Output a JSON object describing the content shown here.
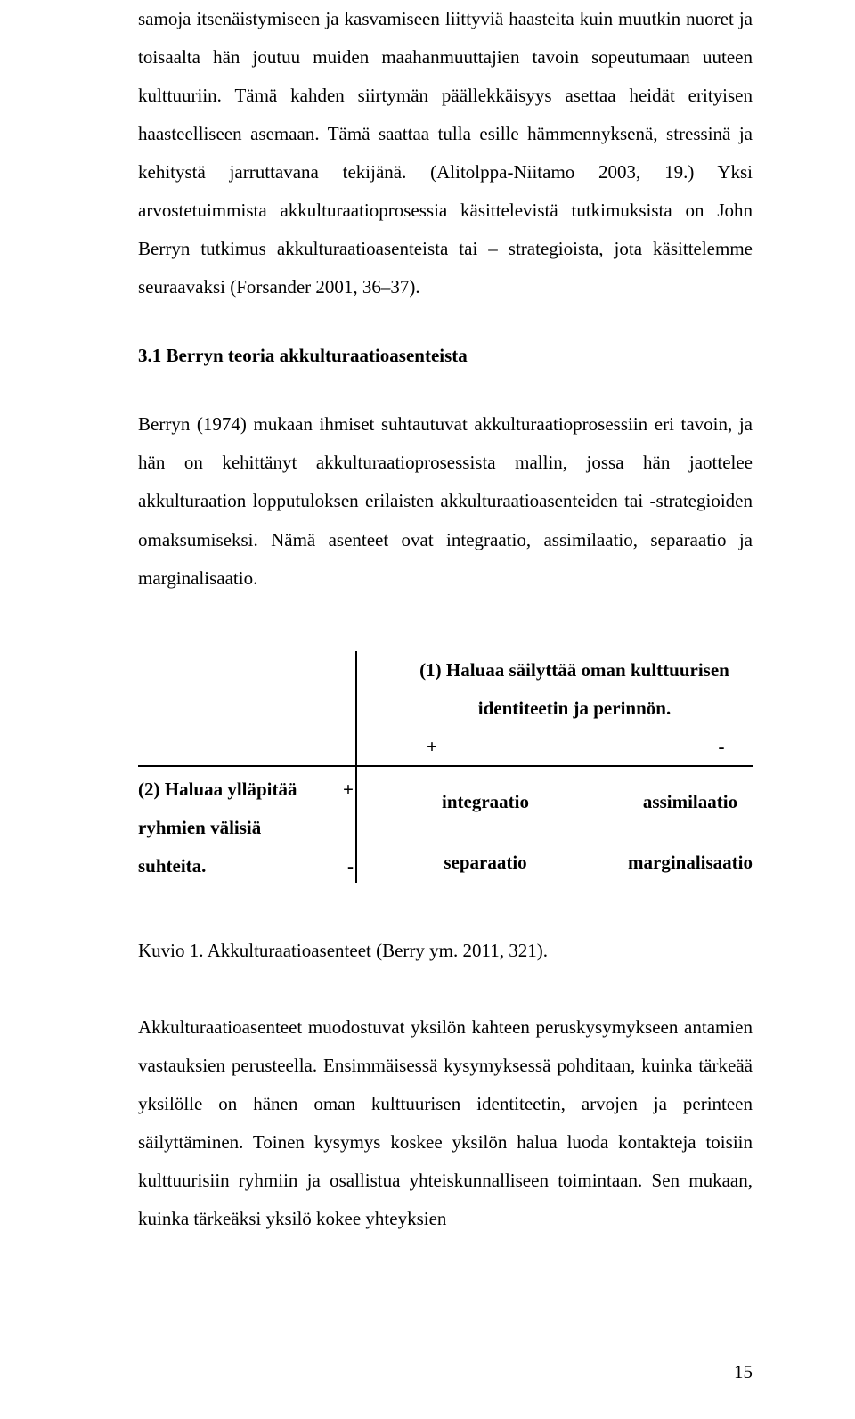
{
  "para1": "samoja itsenäistymiseen ja kasvamiseen liittyviä haasteita kuin muutkin nuoret ja toisaalta hän joutuu muiden maahanmuuttajien tavoin sopeutumaan uuteen kulttuuriin. Tämä kahden siirtymän päällekkäisyys asettaa heidät erityisen haasteelliseen asemaan. Tämä saattaa tulla esille hämmennyksenä, stressinä ja kehitystä jarruttavana tekijänä. (Alitolppa-Niitamo 2003, 19.) Yksi arvostetuimmista akkulturaatioprosessia käsittelevistä tutkimuksista on John Berryn tutkimus akkulturaatioasenteista tai – strategioista, jota käsittelemme seuraavaksi (Forsander 2001, 36–37).",
  "section_heading": "3.1   Berryn teoria akkulturaatioasenteista",
  "para2": "Berryn (1974) mukaan ihmiset suhtautuvat akkulturaatioprosessiin eri tavoin, ja hän on kehittänyt akkulturaatioprosessista mallin, jossa hän jaottelee akkulturaation lopputuloksen erilaisten akkulturaatioasenteiden tai -strategioiden omaksumiseksi. Nämä asenteet ovat integraatio, assimilaatio, separaatio ja marginalisaatio.",
  "diagram": {
    "top_header_line1": "(1) Haluaa säilyttää oman kulttuurisen",
    "top_header_line2": "identiteetin ja perinnön.",
    "plus": "+",
    "minus": "-",
    "left_header_line1": "(2) Haluaa ylläpitää",
    "left_header_line2": "ryhmien välisiä",
    "left_header_line3": "suhteita.",
    "cell_integration": "integraatio",
    "cell_assimilation": "assimilaatio",
    "cell_separation": "separaatio",
    "cell_marginalisation": "marginalisaatio",
    "line_color": "#000000"
  },
  "caption": "Kuvio 1. Akkulturaatioasenteet (Berry ym. 2011, 321).",
  "para3": "Akkulturaatioasenteet muodostuvat yksilön kahteen peruskysymykseen antamien vastauksien perusteella. Ensimmäisessä kysymyksessä pohditaan, kuinka tärkeää yksilölle on hänen oman kulttuurisen identiteetin, arvojen ja perinteen säilyttäminen. Toinen kysymys koskee yksilön halua luoda kontakteja toisiin kulttuurisiin ryhmiin ja osallistua yhteiskunnalliseen toimintaan. Sen mukaan, kuinka tärkeäksi yksilö kokee yhteyksien",
  "page_number": "15"
}
